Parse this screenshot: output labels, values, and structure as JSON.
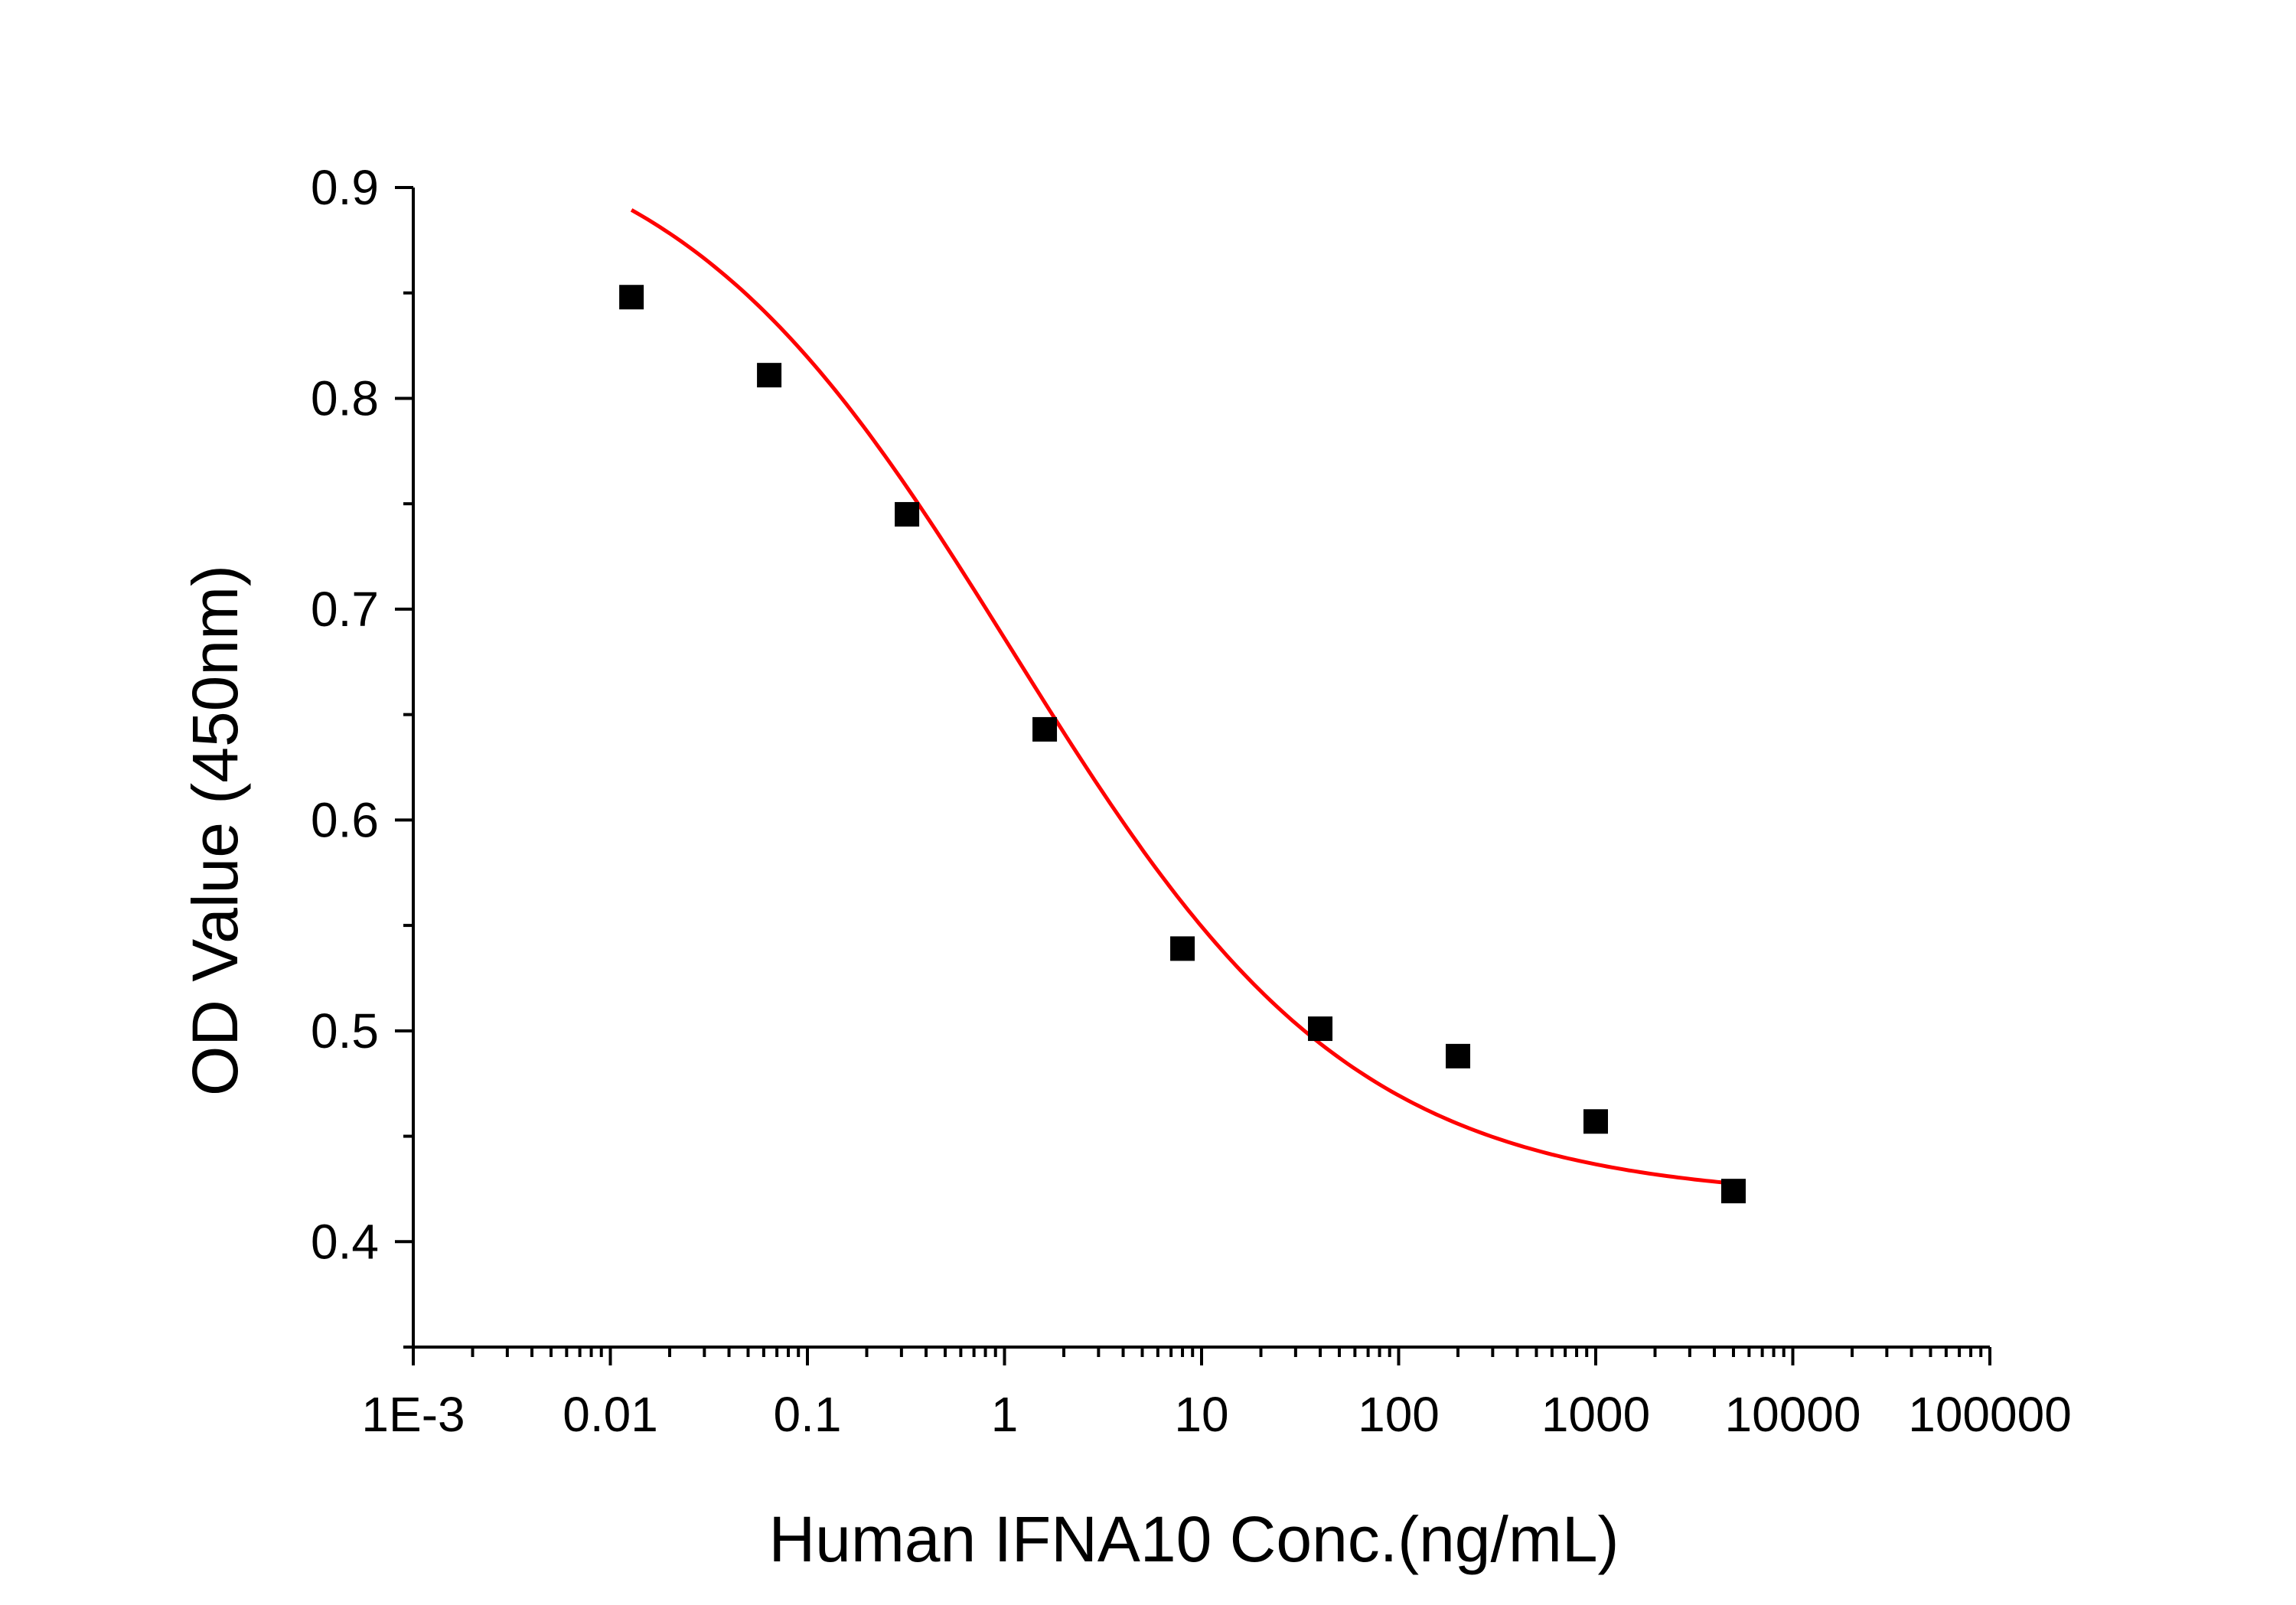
{
  "chart_data": {
    "type": "scatter",
    "xlabel": "Human IFNA10 Conc.(ng/mL)",
    "ylabel": "OD Value (450nm)",
    "x_scale": "log",
    "xlim": [
      0.001,
      100000
    ],
    "ylim": [
      0.35,
      0.9
    ],
    "x_tick_labels": [
      "1E-3",
      "0.01",
      "0.1",
      "1",
      "10",
      "100",
      "1000",
      "10000",
      "100000"
    ],
    "y_tick_labels": [
      "0.4",
      "0.5",
      "0.6",
      "0.7",
      "0.8",
      "0.9"
    ],
    "grid": false,
    "legend": "none",
    "series": [
      {
        "marker": "square",
        "color": "#000000",
        "points": [
          {
            "x": 0.0128,
            "y": 0.848
          },
          {
            "x": 0.064,
            "y": 0.811
          },
          {
            "x": 0.32,
            "y": 0.745
          },
          {
            "x": 1.6,
            "y": 0.643
          },
          {
            "x": 8,
            "y": 0.539
          },
          {
            "x": 40,
            "y": 0.501
          },
          {
            "x": 200,
            "y": 0.488
          },
          {
            "x": 1000,
            "y": 0.457
          },
          {
            "x": 5000,
            "y": 0.424
          }
        ]
      }
    ],
    "fit_curve": {
      "color": "#ff0000",
      "model": "4PL",
      "top": 0.94,
      "bottom": 0.42,
      "ec50": 1.1,
      "hill": 0.5,
      "x_range": [
        0.0128,
        5000
      ]
    }
  }
}
